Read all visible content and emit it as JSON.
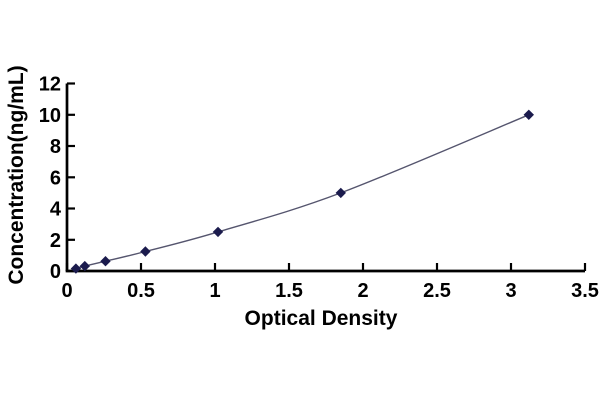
{
  "chart_data": {
    "type": "line",
    "title": "",
    "xlabel": "Optical Density",
    "ylabel": "Concentration(ng/mL)",
    "x": [
      0.06,
      0.12,
      0.26,
      0.53,
      1.02,
      1.85,
      3.12
    ],
    "y": [
      0.156,
      0.312,
      0.625,
      1.25,
      2.5,
      5,
      10
    ],
    "xlim": [
      0,
      3.5
    ],
    "ylim": [
      0,
      12
    ],
    "x_ticks": {
      "values": [
        0,
        0.5,
        1,
        1.5,
        2,
        2.5,
        3,
        3.5
      ],
      "labels": [
        "0",
        "0.5",
        "1",
        "1.5",
        "2",
        "2.5",
        "3",
        "3.5"
      ]
    },
    "y_ticks": {
      "values": [
        0,
        2,
        4,
        6,
        8,
        10,
        12
      ],
      "labels": [
        "0",
        "2",
        "4",
        "6",
        "8",
        "10",
        "12"
      ]
    },
    "grid": false,
    "legend": "none",
    "marker": "diamond",
    "line_style": "smooth",
    "colors": {
      "marker": "#1b1b4d",
      "line": "#55556e",
      "axis": "#000000",
      "text": "#000000",
      "background": "#ffffff"
    }
  }
}
